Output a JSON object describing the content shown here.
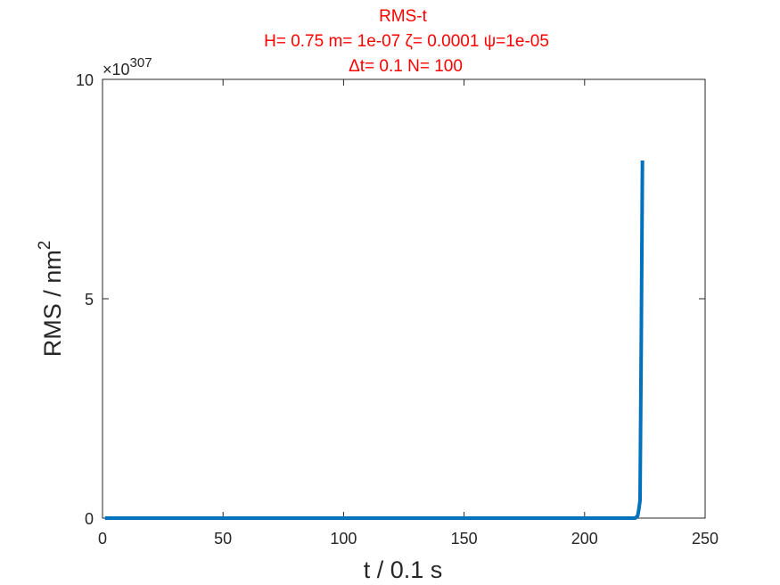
{
  "chart_data": {
    "type": "line",
    "title_lines": [
      "RMS-t",
      "H= 0.75 m= 1e-07 ζ= 0.0001 ψ=1e-05",
      "Δt= 0.1 N= 100"
    ],
    "xlabel": "t / 0.1 s",
    "ylabel_base": "RMS / nm",
    "ylabel_sup": "2",
    "y_exponent_base": "×10",
    "y_exponent_power": "307",
    "xlim": [
      0,
      250
    ],
    "ylim": [
      0,
      10
    ],
    "x_ticks": [
      0,
      50,
      100,
      150,
      200,
      250
    ],
    "y_ticks": [
      0,
      5,
      10
    ],
    "grid": false,
    "title_color": "#ff0000",
    "series": [
      {
        "color": "#0072bd",
        "x": [
          1,
          50,
          100,
          150,
          200,
          221,
          222,
          222.5,
          223,
          223.5,
          224
        ],
        "y": [
          0,
          0,
          0,
          0,
          0,
          0,
          0.05,
          0.2,
          0.4,
          4.0,
          8.15
        ]
      }
    ]
  }
}
